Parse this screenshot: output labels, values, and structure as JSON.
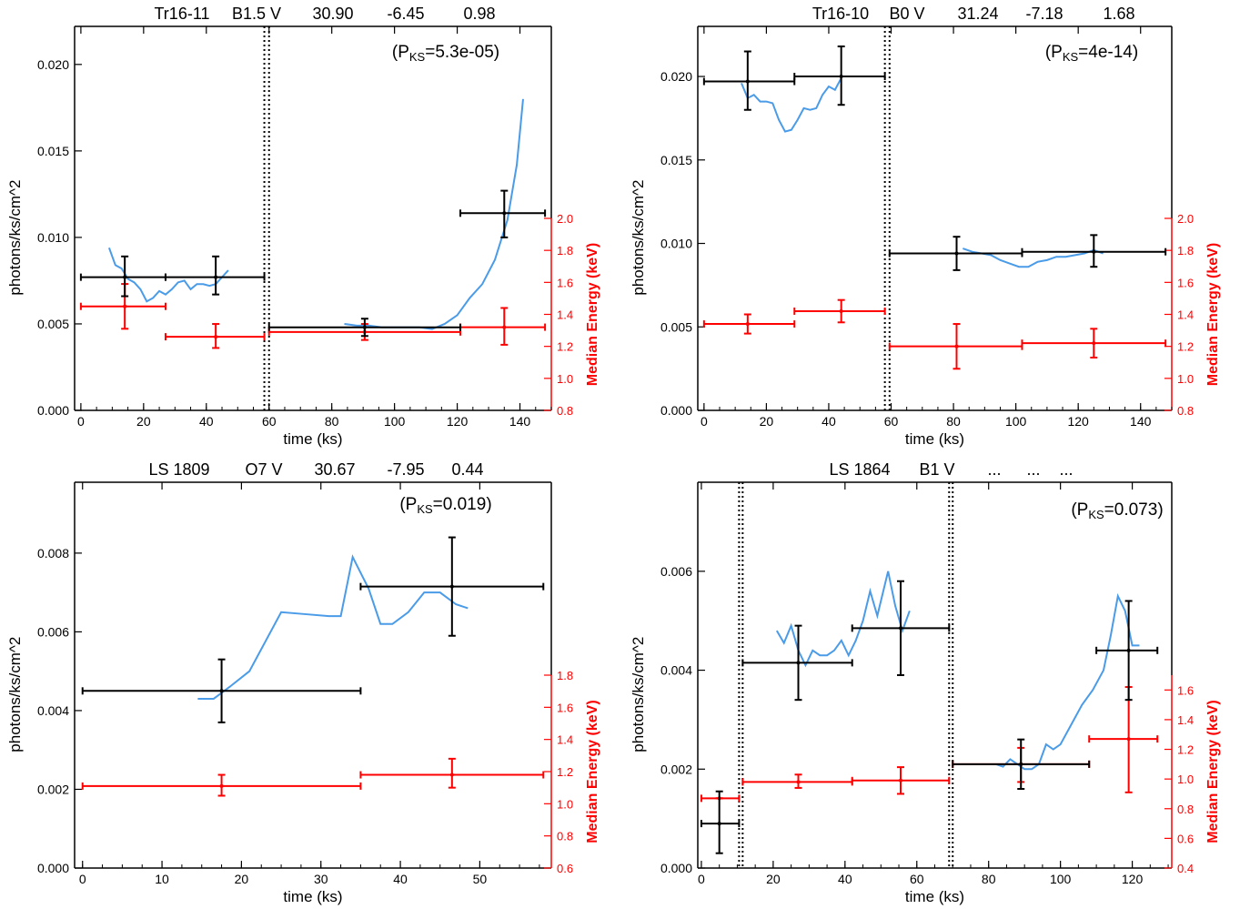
{
  "colors": {
    "lightcurve": "#4a9be8",
    "photon_bins": "#000000",
    "energy_bins": "#ff0000",
    "axis": "#000000",
    "energy_axis": "#ff0000"
  },
  "chart_data": [
    {
      "type": "line",
      "header": [
        "Tr16-11",
        "B1.5 V",
        "30.90",
        "-6.45",
        "0.98"
      ],
      "annotation": "(P_KS=5.3e-05)",
      "annotation_parts": {
        "prefix": "(P",
        "sub": "KS",
        "suffix": "=5.3e-05)"
      },
      "xlabel": "time  (ks)",
      "ylabel": "photons/ks/cm^2",
      "y2label": "Median Energy  (keV)",
      "xlim": [
        -2,
        150
      ],
      "ylim": [
        0,
        0.0222
      ],
      "y2lim": [
        0.8,
        2.0
      ],
      "xticks": [
        "0",
        "20",
        "40",
        "60",
        "80",
        "100",
        "120",
        "140"
      ],
      "yticks": [
        "0.000",
        "0.005",
        "0.010",
        "0.015",
        "0.020"
      ],
      "y2ticks": [
        "0.8",
        "1.0",
        "1.2",
        "1.4",
        "1.6",
        "1.8",
        "2.0"
      ],
      "gaps": [
        58.5,
        60.0
      ],
      "curve": [
        [
          9,
          0.0094
        ],
        [
          11,
          0.0084
        ],
        [
          13,
          0.0082
        ],
        [
          15,
          0.0076
        ],
        [
          17,
          0.0074
        ],
        [
          19,
          0.007
        ],
        [
          21,
          0.0063
        ],
        [
          23,
          0.0065
        ],
        [
          25,
          0.0069
        ],
        [
          27,
          0.0067
        ],
        [
          29,
          0.007
        ],
        [
          31,
          0.0074
        ],
        [
          33,
          0.0075
        ],
        [
          35,
          0.007
        ],
        [
          37,
          0.0073
        ],
        [
          39,
          0.0073
        ],
        [
          41,
          0.0072
        ],
        [
          43,
          0.0073
        ],
        [
          45,
          0.0077
        ],
        [
          47,
          0.0081
        ],
        [
          84,
          0.005
        ],
        [
          88,
          0.0049
        ],
        [
          92,
          0.0049
        ],
        [
          96,
          0.0048
        ],
        [
          100,
          0.0048
        ],
        [
          104,
          0.0048
        ],
        [
          108,
          0.0048
        ],
        [
          112,
          0.0047
        ],
        [
          116,
          0.005
        ],
        [
          120,
          0.0055
        ],
        [
          124,
          0.0065
        ],
        [
          128,
          0.0073
        ],
        [
          132,
          0.0087
        ],
        [
          136,
          0.011
        ],
        [
          139,
          0.0142
        ],
        [
          141,
          0.018
        ]
      ],
      "photon_bins": [
        {
          "x": 14,
          "xlo": 0,
          "xhi": 27,
          "y": 0.0077,
          "ylo": 0.0066,
          "yhi": 0.0089
        },
        {
          "x": 43,
          "xlo": 27,
          "xhi": 58.5,
          "y": 0.0077,
          "ylo": 0.0067,
          "yhi": 0.0089
        },
        {
          "x": 90.5,
          "xlo": 60,
          "xhi": 121,
          "y": 0.0048,
          "ylo": 0.0043,
          "yhi": 0.0053
        },
        {
          "x": 135,
          "xlo": 121,
          "xhi": 148,
          "y": 0.0114,
          "ylo": 0.01,
          "yhi": 0.0127
        }
      ],
      "energy_bins": [
        {
          "x": 14,
          "xlo": 0,
          "xhi": 27,
          "y": 1.45,
          "ylo": 1.31,
          "yhi": 1.59
        },
        {
          "x": 43,
          "xlo": 27,
          "xhi": 58.5,
          "y": 1.26,
          "ylo": 1.19,
          "yhi": 1.34
        },
        {
          "x": 90.5,
          "xlo": 60,
          "xhi": 121,
          "y": 1.29,
          "ylo": 1.24,
          "yhi": 1.34
        },
        {
          "x": 135,
          "xlo": 121,
          "xhi": 148,
          "y": 1.32,
          "ylo": 1.21,
          "yhi": 1.44
        }
      ]
    },
    {
      "type": "line",
      "header": [
        "Tr16-10",
        "B0 V",
        "31.24",
        "-7.18",
        "1.68"
      ],
      "annotation": "(P_KS=4e-14)",
      "annotation_parts": {
        "prefix": "(P",
        "sub": "KS",
        "suffix": "=4e-14)"
      },
      "xlabel": "time  (ks)",
      "ylabel": "photons/ks/cm^2",
      "y2label": "Median Energy  (keV)",
      "xlim": [
        -2,
        150
      ],
      "ylim": [
        0,
        0.023
      ],
      "y2lim": [
        0.8,
        2.0
      ],
      "xticks": [
        "0",
        "20",
        "40",
        "60",
        "80",
        "100",
        "120",
        "140"
      ],
      "yticks": [
        "0.000",
        "0.005",
        "0.010",
        "0.015",
        "0.020"
      ],
      "y2ticks": [
        "0.8",
        "1.0",
        "1.2",
        "1.4",
        "1.6",
        "1.8",
        "2.0"
      ],
      "gaps": [
        58.0,
        59.5
      ],
      "curve": [
        [
          12,
          0.0196
        ],
        [
          14,
          0.0187
        ],
        [
          16,
          0.0189
        ],
        [
          18,
          0.0185
        ],
        [
          20,
          0.0185
        ],
        [
          22,
          0.0184
        ],
        [
          24,
          0.0174
        ],
        [
          26,
          0.0167
        ],
        [
          28,
          0.0168
        ],
        [
          30,
          0.0174
        ],
        [
          32,
          0.0181
        ],
        [
          34,
          0.018
        ],
        [
          36,
          0.0181
        ],
        [
          38,
          0.0189
        ],
        [
          40,
          0.0194
        ],
        [
          42,
          0.0192
        ],
        [
          44,
          0.0199
        ],
        [
          83,
          0.0097
        ],
        [
          86,
          0.0095
        ],
        [
          89,
          0.0094
        ],
        [
          92,
          0.0093
        ],
        [
          95,
          0.009
        ],
        [
          98,
          0.0088
        ],
        [
          101,
          0.0086
        ],
        [
          104,
          0.0086
        ],
        [
          107,
          0.0089
        ],
        [
          110,
          0.009
        ],
        [
          113,
          0.0092
        ],
        [
          116,
          0.0092
        ],
        [
          119,
          0.0093
        ],
        [
          122,
          0.0094
        ],
        [
          125,
          0.0096
        ],
        [
          128,
          0.0094
        ]
      ],
      "photon_bins": [
        {
          "x": 14,
          "xlo": 0,
          "xhi": 29,
          "y": 0.0197,
          "ylo": 0.018,
          "yhi": 0.0215
        },
        {
          "x": 44,
          "xlo": 29,
          "xhi": 58,
          "y": 0.02,
          "ylo": 0.0183,
          "yhi": 0.0218
        },
        {
          "x": 81,
          "xlo": 59.5,
          "xhi": 102,
          "y": 0.0094,
          "ylo": 0.0084,
          "yhi": 0.0104
        },
        {
          "x": 125,
          "xlo": 102,
          "xhi": 148,
          "y": 0.0095,
          "ylo": 0.0086,
          "yhi": 0.0105
        }
      ],
      "energy_bins": [
        {
          "x": 14,
          "xlo": 0,
          "xhi": 29,
          "y": 1.34,
          "ylo": 1.28,
          "yhi": 1.4
        },
        {
          "x": 44,
          "xlo": 29,
          "xhi": 58,
          "y": 1.42,
          "ylo": 1.35,
          "yhi": 1.49
        },
        {
          "x": 81,
          "xlo": 59.5,
          "xhi": 102,
          "y": 1.2,
          "ylo": 1.06,
          "yhi": 1.34
        },
        {
          "x": 125,
          "xlo": 102,
          "xhi": 148,
          "y": 1.22,
          "ylo": 1.13,
          "yhi": 1.31
        }
      ]
    },
    {
      "type": "line",
      "header": [
        "LS 1809",
        "O7 V",
        "30.67",
        "-7.95",
        "0.44"
      ],
      "annotation": "(P_KS=0.019)",
      "annotation_parts": {
        "prefix": "(P",
        "sub": "KS",
        "suffix": "=0.019)"
      },
      "xlabel": "time  (ks)",
      "ylabel": "photons/ks/cm^2",
      "y2label": "Median Energy  (keV)",
      "xlim": [
        -1,
        59
      ],
      "ylim": [
        0,
        0.0098
      ],
      "y2lim": [
        0.6,
        1.8
      ],
      "xticks": [
        "0",
        "10",
        "20",
        "30",
        "40",
        "50"
      ],
      "yticks": [
        "0.000",
        "0.002",
        "0.004",
        "0.006",
        "0.008"
      ],
      "y2ticks": [
        "0.6",
        "0.8",
        "1.0",
        "1.2",
        "1.4",
        "1.6",
        "1.8"
      ],
      "gaps": [],
      "curve": [
        [
          14.5,
          0.0043
        ],
        [
          16.5,
          0.0043
        ],
        [
          18.5,
          0.0046
        ],
        [
          21,
          0.005
        ],
        [
          25,
          0.0065
        ],
        [
          28,
          0.00645
        ],
        [
          31,
          0.0064
        ],
        [
          32.5,
          0.0064
        ],
        [
          34,
          0.0079
        ],
        [
          36,
          0.0071
        ],
        [
          37.5,
          0.0062
        ],
        [
          39,
          0.0062
        ],
        [
          41,
          0.0065
        ],
        [
          43,
          0.007
        ],
        [
          45,
          0.007
        ],
        [
          47,
          0.0067
        ],
        [
          48.5,
          0.0066
        ]
      ],
      "photon_bins": [
        {
          "x": 17.5,
          "xlo": 0,
          "xhi": 35,
          "y": 0.0045,
          "ylo": 0.0037,
          "yhi": 0.0053
        },
        {
          "x": 46.5,
          "xlo": 35,
          "xhi": 58,
          "y": 0.00715,
          "ylo": 0.0059,
          "yhi": 0.0084
        }
      ],
      "energy_bins": [
        {
          "x": 17.5,
          "xlo": 0,
          "xhi": 35,
          "y": 1.11,
          "ylo": 1.05,
          "yhi": 1.18
        },
        {
          "x": 46.5,
          "xlo": 35,
          "xhi": 58,
          "y": 1.18,
          "ylo": 1.1,
          "yhi": 1.28
        }
      ]
    },
    {
      "type": "line",
      "header": [
        "LS 1864",
        "B1 V",
        "...",
        "...",
        "..."
      ],
      "annotation": "(P_KS=0.073)",
      "annotation_parts": {
        "prefix": "(P",
        "sub": "KS",
        "suffix": "=0.073)"
      },
      "xlabel": "time  (ks)",
      "ylabel": "photons/ks/cm^2",
      "y2label": "Median Energy  (keV)",
      "xlim": [
        -1,
        131
      ],
      "ylim": [
        0,
        0.0078
      ],
      "y2lim": [
        0.4,
        1.7
      ],
      "xticks": [
        "0",
        "20",
        "40",
        "60",
        "80",
        "100",
        "120"
      ],
      "yticks": [
        "0.000",
        "0.002",
        "0.004",
        "0.006"
      ],
      "y2ticks": [
        "0.4",
        "0.6",
        "0.8",
        "1.0",
        "1.2",
        "1.4",
        "1.6"
      ],
      "gaps": [
        10.5,
        11.5,
        69.0,
        70.0
      ],
      "curve": [
        [
          21,
          0.0048
        ],
        [
          23,
          0.00455
        ],
        [
          25,
          0.0049
        ],
        [
          27,
          0.0044
        ],
        [
          29,
          0.0041
        ],
        [
          31,
          0.0044
        ],
        [
          33,
          0.0043
        ],
        [
          35,
          0.0043
        ],
        [
          37,
          0.0044
        ],
        [
          39,
          0.0046
        ],
        [
          41,
          0.0043
        ],
        [
          43,
          0.0046
        ],
        [
          45,
          0.005
        ],
        [
          47,
          0.0056
        ],
        [
          49,
          0.0051
        ],
        [
          52,
          0.006
        ],
        [
          54,
          0.0053
        ],
        [
          56,
          0.0048
        ],
        [
          58,
          0.0052
        ],
        [
          82,
          0.0021
        ],
        [
          84,
          0.00205
        ],
        [
          86,
          0.0022
        ],
        [
          88,
          0.0021
        ],
        [
          90,
          0.002
        ],
        [
          92,
          0.002
        ],
        [
          94,
          0.0021
        ],
        [
          96,
          0.0025
        ],
        [
          98,
          0.0024
        ],
        [
          100,
          0.0025
        ],
        [
          103,
          0.0029
        ],
        [
          106,
          0.0033
        ],
        [
          109,
          0.0036
        ],
        [
          112,
          0.004
        ],
        [
          114,
          0.0047
        ],
        [
          116,
          0.0055
        ],
        [
          118,
          0.0052
        ],
        [
          120,
          0.0045
        ],
        [
          122,
          0.0045
        ]
      ],
      "photon_bins": [
        {
          "x": 5,
          "xlo": 0,
          "xhi": 10.5,
          "y": 0.0009,
          "ylo": 0.0003,
          "yhi": 0.00155
        },
        {
          "x": 27,
          "xlo": 11.5,
          "xhi": 42,
          "y": 0.00415,
          "ylo": 0.0034,
          "yhi": 0.0049
        },
        {
          "x": 55.5,
          "xlo": 42,
          "xhi": 69,
          "y": 0.00485,
          "ylo": 0.0039,
          "yhi": 0.0058
        },
        {
          "x": 89,
          "xlo": 70,
          "xhi": 108,
          "y": 0.0021,
          "ylo": 0.0016,
          "yhi": 0.0026
        },
        {
          "x": 119,
          "xlo": 110,
          "xhi": 127,
          "y": 0.0044,
          "ylo": 0.0034,
          "yhi": 0.0054
        }
      ],
      "energy_bins": [
        {
          "x": 5,
          "xlo": 0,
          "xhi": 10.5,
          "y": 0.87,
          "ylo": 0.87,
          "yhi": 0.87
        },
        {
          "x": 27,
          "xlo": 11.5,
          "xhi": 42,
          "y": 0.98,
          "ylo": 0.94,
          "yhi": 1.03
        },
        {
          "x": 55.5,
          "xlo": 42,
          "xhi": 69,
          "y": 0.99,
          "ylo": 0.9,
          "yhi": 1.08
        },
        {
          "x": 89,
          "xlo": 70,
          "xhi": 108,
          "y": 1.1,
          "ylo": 0.98,
          "yhi": 1.21
        },
        {
          "x": 119,
          "xlo": 108,
          "xhi": 127,
          "y": 1.27,
          "ylo": 0.91,
          "yhi": 1.62
        }
      ]
    }
  ]
}
